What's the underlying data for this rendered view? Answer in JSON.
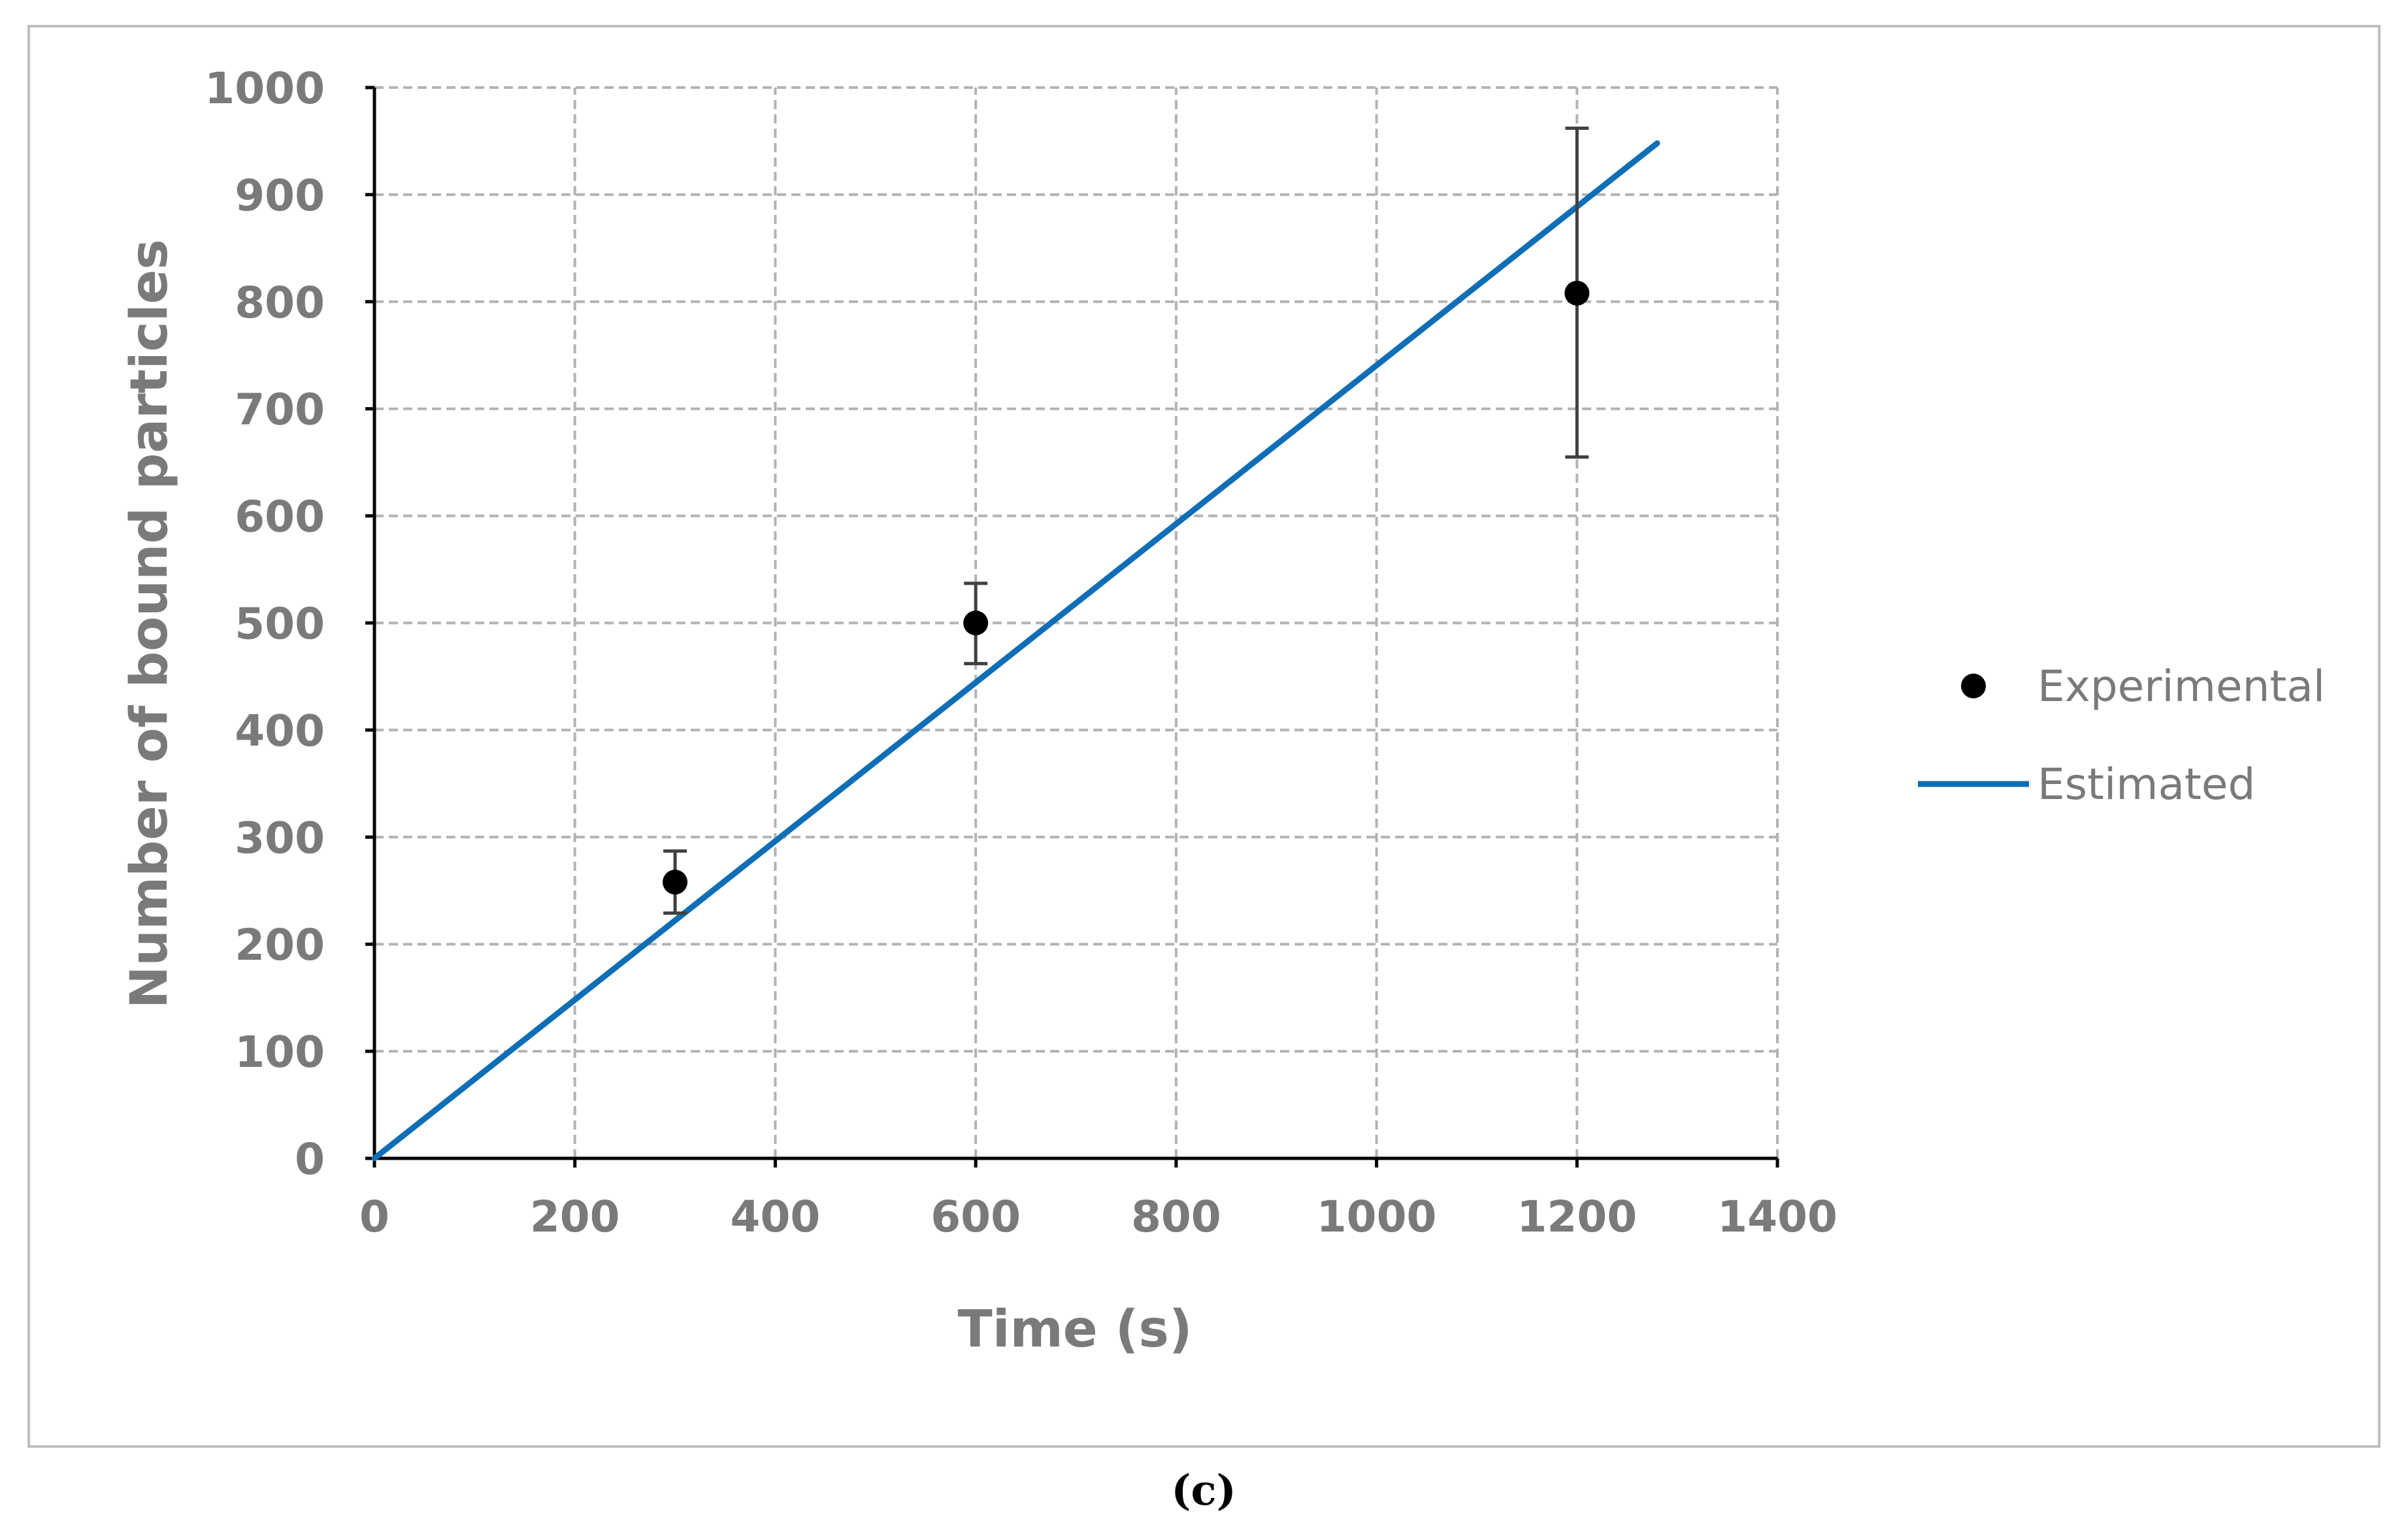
{
  "caption": "(c)",
  "colors": {
    "estimated": "#0f6eb5",
    "experimental": "#000000",
    "error_bar": "#404040",
    "axis": "#000000",
    "text": "#7a7a7a",
    "frame": "#bfbfbf"
  },
  "chart_data": {
    "type": "scatter",
    "xlabel": "Time (s)",
    "ylabel": "Number of bound particles",
    "xlim": [
      0,
      1400
    ],
    "ylim": [
      0,
      1000
    ],
    "x_ticks": [
      "0",
      "200",
      "400",
      "600",
      "800",
      "1000",
      "1200",
      "1400"
    ],
    "y_ticks": [
      "0",
      "100",
      "200",
      "300",
      "400",
      "500",
      "600",
      "700",
      "800",
      "900",
      "1000"
    ],
    "grid": true,
    "legend_position": "right",
    "series": [
      {
        "name": "Experimental",
        "type": "scatter",
        "x": [
          300,
          600,
          1200
        ],
        "y": [
          258,
          500,
          808
        ],
        "error_upper": [
          287,
          537,
          962
        ],
        "error_lower": [
          229,
          462,
          655
        ]
      },
      {
        "name": "Estimated",
        "type": "line",
        "x": [
          0,
          1280
        ],
        "y": [
          0,
          948
        ]
      }
    ]
  }
}
